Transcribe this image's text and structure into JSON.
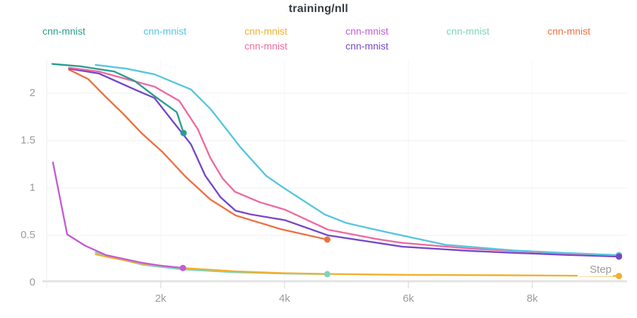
{
  "title": "training/nll",
  "xaxis": {
    "label": "Step"
  },
  "legend": {
    "items": [
      {
        "label": "cnn-mnist",
        "color": "#2a9d8f",
        "row": 0,
        "col": 0
      },
      {
        "label": "cnn-mnist",
        "color": "#56c5e1",
        "row": 0,
        "col": 1
      },
      {
        "label": "cnn-mnist",
        "color": "#f1b02e",
        "row": 0,
        "col": 2
      },
      {
        "label": "cnn-mnist",
        "color": "#c35cd4",
        "row": 0,
        "col": 3
      },
      {
        "label": "cnn-mnist",
        "color": "#7ed4be",
        "row": 0,
        "col": 4
      },
      {
        "label": "cnn-mnist",
        "color": "#ee7040",
        "row": 0,
        "col": 5
      },
      {
        "label": "cnn-mnist",
        "color": "#ef6a9e",
        "row": 1,
        "col": 2
      },
      {
        "label": "cnn-mnist",
        "color": "#7448c8",
        "row": 1,
        "col": 3
      }
    ]
  },
  "chart_data": {
    "type": "line",
    "title": "training/nll",
    "xlabel": "Step",
    "ylabel": "",
    "xlim": [
      0,
      9600
    ],
    "ylim": [
      0,
      2.35
    ],
    "grid": true,
    "legend_position": "top",
    "x_ticks": [
      {
        "value": 2000,
        "label": "2k"
      },
      {
        "value": 4000,
        "label": "4k"
      },
      {
        "value": 6000,
        "label": "6k"
      },
      {
        "value": 8000,
        "label": "8k"
      }
    ],
    "y_ticks": [
      {
        "value": 0,
        "label": "0"
      },
      {
        "value": 0.5,
        "label": "0.5"
      },
      {
        "value": 1,
        "label": "1"
      },
      {
        "value": 1.5,
        "label": "1.5"
      },
      {
        "value": 2,
        "label": "2"
      }
    ],
    "series": [
      {
        "name": "cnn-mnist",
        "color": "#2a9d8f",
        "points": [
          [
            250,
            2.31
          ],
          [
            700,
            2.285
          ],
          [
            1250,
            2.23
          ],
          [
            1580,
            2.13
          ],
          [
            1900,
            1.97
          ],
          [
            2260,
            1.8
          ],
          [
            2370,
            1.58
          ]
        ]
      },
      {
        "name": "cnn-mnist",
        "color": "#56c5e1",
        "points": [
          [
            950,
            2.3
          ],
          [
            1450,
            2.26
          ],
          [
            1900,
            2.2
          ],
          [
            2490,
            2.04
          ],
          [
            2810,
            1.83
          ],
          [
            3300,
            1.42
          ],
          [
            3700,
            1.13
          ],
          [
            4010,
            0.99
          ],
          [
            4650,
            0.72
          ],
          [
            5000,
            0.63
          ],
          [
            5600,
            0.54
          ],
          [
            6600,
            0.4
          ],
          [
            7700,
            0.34
          ],
          [
            8500,
            0.315
          ],
          [
            9400,
            0.29
          ]
        ]
      },
      {
        "name": "cnn-mnist",
        "color": "#f1b02e",
        "points": [
          [
            950,
            0.3
          ],
          [
            1150,
            0.27
          ],
          [
            1700,
            0.2
          ],
          [
            2350,
            0.155
          ],
          [
            3200,
            0.12
          ],
          [
            4000,
            0.1
          ],
          [
            4700,
            0.092
          ],
          [
            6000,
            0.082
          ],
          [
            7500,
            0.078
          ],
          [
            9400,
            0.07
          ]
        ]
      },
      {
        "name": "cnn-mnist",
        "color": "#c35cd4",
        "points": [
          [
            260,
            1.27
          ],
          [
            490,
            0.51
          ],
          [
            780,
            0.39
          ],
          [
            1120,
            0.29
          ],
          [
            1700,
            0.21
          ],
          [
            2000,
            0.18
          ],
          [
            2360,
            0.155
          ]
        ]
      },
      {
        "name": "cnn-mnist",
        "color": "#7ed4be",
        "points": [
          [
            950,
            0.32
          ],
          [
            1150,
            0.28
          ],
          [
            1700,
            0.19
          ],
          [
            2350,
            0.14
          ],
          [
            3200,
            0.11
          ],
          [
            4000,
            0.097
          ],
          [
            4690,
            0.09
          ]
        ]
      },
      {
        "name": "cnn-mnist",
        "color": "#ee7040",
        "points": [
          [
            520,
            2.25
          ],
          [
            830,
            2.15
          ],
          [
            1100,
            1.97
          ],
          [
            1400,
            1.78
          ],
          [
            1690,
            1.58
          ],
          [
            2030,
            1.38
          ],
          [
            2400,
            1.12
          ],
          [
            2800,
            0.88
          ],
          [
            3210,
            0.71
          ],
          [
            3940,
            0.565
          ],
          [
            4690,
            0.455
          ]
        ]
      },
      {
        "name": "cnn-mnist",
        "color": "#ef6a9e",
        "points": [
          [
            520,
            2.27
          ],
          [
            1000,
            2.23
          ],
          [
            1500,
            2.14
          ],
          [
            1900,
            2.07
          ],
          [
            2300,
            1.92
          ],
          [
            2600,
            1.62
          ],
          [
            2800,
            1.32
          ],
          [
            3000,
            1.1
          ],
          [
            3200,
            0.96
          ],
          [
            3600,
            0.85
          ],
          [
            4010,
            0.77
          ],
          [
            4700,
            0.56
          ],
          [
            5500,
            0.46
          ],
          [
            5900,
            0.42
          ],
          [
            7000,
            0.36
          ],
          [
            7700,
            0.335
          ],
          [
            8500,
            0.31
          ],
          [
            9400,
            0.29
          ]
        ]
      },
      {
        "name": "cnn-mnist",
        "color": "#7448c8",
        "points": [
          [
            520,
            2.26
          ],
          [
            1000,
            2.21
          ],
          [
            1580,
            2.04
          ],
          [
            1900,
            1.95
          ],
          [
            2260,
            1.65
          ],
          [
            2490,
            1.46
          ],
          [
            2720,
            1.13
          ],
          [
            2970,
            0.9
          ],
          [
            3210,
            0.76
          ],
          [
            3460,
            0.72
          ],
          [
            4010,
            0.66
          ],
          [
            4700,
            0.5
          ],
          [
            5500,
            0.42
          ],
          [
            5900,
            0.38
          ],
          [
            7000,
            0.335
          ],
          [
            7700,
            0.315
          ],
          [
            8500,
            0.295
          ],
          [
            9400,
            0.275
          ]
        ]
      }
    ]
  },
  "style": {
    "axis_line_color": "#e3e3e3",
    "tick_color": "#d5d5d5",
    "h_grid_color": "#efefef",
    "v_grid_color": "#f6f6f6",
    "plot_edge_color": "#ededed",
    "tick_label_color": "#9b9b9b",
    "title_color": "#373c41"
  }
}
